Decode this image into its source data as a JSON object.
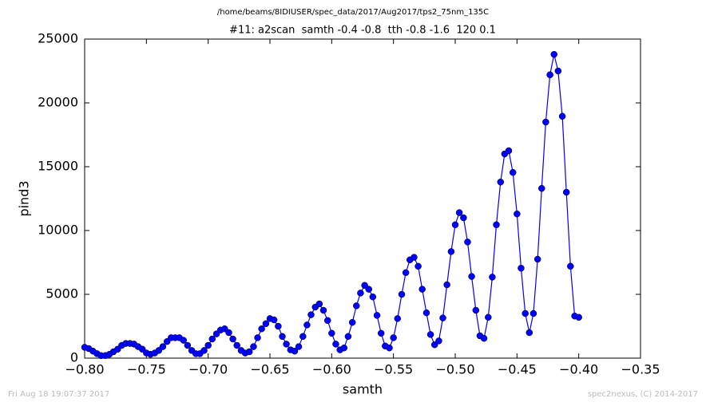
{
  "chart_data": {
    "type": "line",
    "title": "/home/beams/8IDIUSER/spec_data/2017/Aug2017/tps2_75nm_135C",
    "subtitle": "#11: a2scan  samth -0.4 -0.8  tth -0.8 -1.6  120 0.1",
    "xlabel": "samth",
    "ylabel": "pind3",
    "footer_left": "Fri Aug 18 19:07:37 2017",
    "footer_right": "spec2nexus, (C) 2014-2017",
    "xlim": [
      -0.8,
      -0.35
    ],
    "ylim": [
      0,
      25000
    ],
    "xticks": [
      {
        "value": -0.8,
        "label": "−0.80"
      },
      {
        "value": -0.75,
        "label": "−0.75"
      },
      {
        "value": -0.7,
        "label": "−0.70"
      },
      {
        "value": -0.65,
        "label": "−0.65"
      },
      {
        "value": -0.6,
        "label": "−0.60"
      },
      {
        "value": -0.55,
        "label": "−0.55"
      },
      {
        "value": -0.5,
        "label": "−0.50"
      },
      {
        "value": -0.45,
        "label": "−0.45"
      },
      {
        "value": -0.4,
        "label": "−0.40"
      },
      {
        "value": -0.35,
        "label": "−0.35"
      }
    ],
    "yticks": [
      0,
      5000,
      10000,
      15000,
      20000,
      25000
    ],
    "x": [
      -0.8,
      -0.7967,
      -0.7933,
      -0.79,
      -0.7867,
      -0.7833,
      -0.78,
      -0.7767,
      -0.7733,
      -0.77,
      -0.7667,
      -0.7633,
      -0.76,
      -0.7567,
      -0.7533,
      -0.75,
      -0.7467,
      -0.7433,
      -0.74,
      -0.7367,
      -0.7333,
      -0.73,
      -0.7267,
      -0.7233,
      -0.72,
      -0.7167,
      -0.7133,
      -0.71,
      -0.7067,
      -0.7033,
      -0.7,
      -0.6967,
      -0.6933,
      -0.69,
      -0.6867,
      -0.6833,
      -0.68,
      -0.6767,
      -0.6733,
      -0.67,
      -0.6667,
      -0.6633,
      -0.66,
      -0.6567,
      -0.6533,
      -0.65,
      -0.6467,
      -0.6433,
      -0.64,
      -0.6367,
      -0.6333,
      -0.63,
      -0.6267,
      -0.6233,
      -0.62,
      -0.6167,
      -0.6133,
      -0.61,
      -0.6067,
      -0.6033,
      -0.6,
      -0.5967,
      -0.5933,
      -0.59,
      -0.5867,
      -0.5833,
      -0.58,
      -0.5767,
      -0.5733,
      -0.57,
      -0.5667,
      -0.5633,
      -0.56,
      -0.5567,
      -0.5533,
      -0.55,
      -0.5467,
      -0.5433,
      -0.54,
      -0.5367,
      -0.5333,
      -0.53,
      -0.5267,
      -0.5233,
      -0.52,
      -0.5167,
      -0.5133,
      -0.51,
      -0.5067,
      -0.5033,
      -0.5,
      -0.4967,
      -0.4933,
      -0.49,
      -0.4867,
      -0.4833,
      -0.48,
      -0.4767,
      -0.4733,
      -0.47,
      -0.4667,
      -0.4633,
      -0.46,
      -0.4567,
      -0.4533,
      -0.45,
      -0.4467,
      -0.4433,
      -0.44,
      -0.4367,
      -0.4333,
      -0.43,
      -0.4267,
      -0.4233,
      -0.42,
      -0.4167,
      -0.4133,
      -0.41,
      -0.4067,
      -0.4033,
      -0.4
    ],
    "series": [
      {
        "color": "#0000ff",
        "values": [
          850,
          750,
          550,
          350,
          200,
          200,
          300,
          500,
          700,
          1000,
          1150,
          1150,
          1100,
          900,
          700,
          400,
          300,
          400,
          600,
          900,
          1300,
          1600,
          1600,
          1600,
          1400,
          1000,
          600,
          350,
          350,
          600,
          1000,
          1500,
          1900,
          2200,
          2300,
          2000,
          1500,
          1000,
          600,
          400,
          500,
          900,
          1600,
          2300,
          2700,
          3100,
          3000,
          2500,
          1700,
          1100,
          650,
          550,
          900,
          1700,
          2600,
          3400,
          4000,
          4250,
          3750,
          2950,
          1950,
          1100,
          650,
          800,
          1700,
          2800,
          4100,
          5100,
          5700,
          5400,
          4800,
          3350,
          1950,
          950,
          800,
          1600,
          3100,
          5000,
          6700,
          7700,
          7900,
          7200,
          5400,
          3550,
          1850,
          1050,
          1350,
          3150,
          5750,
          8350,
          10450,
          11400,
          11000,
          9100,
          6400,
          3750,
          1750,
          1550,
          3200,
          6350,
          10450,
          13800,
          16000,
          16250,
          14550,
          11300,
          7050,
          3500,
          2000,
          3500,
          7750,
          13300,
          18500,
          22200,
          23800,
          22500,
          18950,
          13000,
          7200,
          3300,
          3200
        ]
      }
    ]
  }
}
